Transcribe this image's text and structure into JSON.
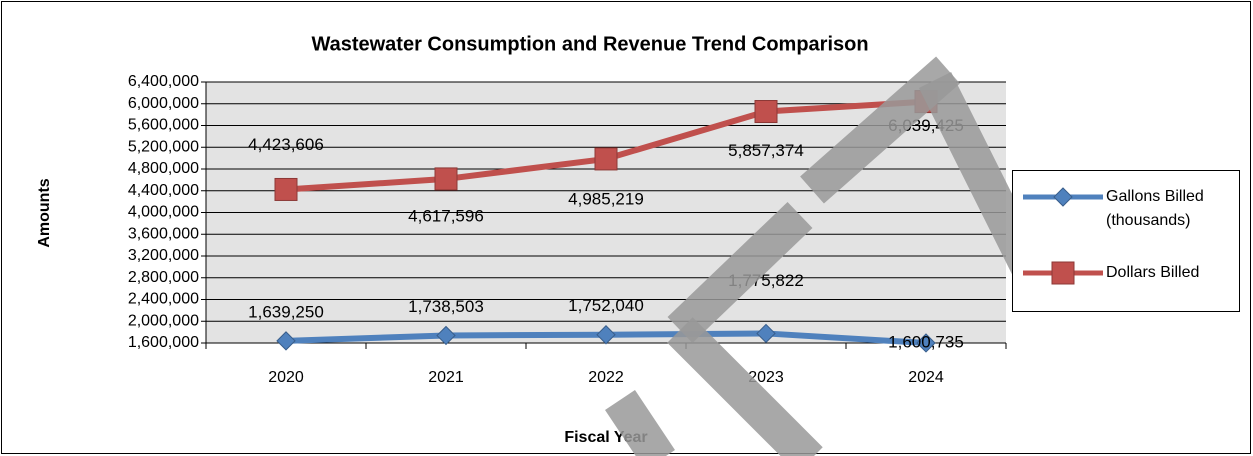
{
  "chart_data": {
    "type": "line",
    "title": "Wastewater Consumption and Revenue Trend Comparison",
    "y_label": "Amounts",
    "x_label": "Fiscal Year",
    "categories": [
      "2020",
      "2021",
      "2022",
      "2023",
      "2024"
    ],
    "series": [
      {
        "name": "Gallons Billed (thousands)",
        "color": "#4f81bd",
        "marker": "diamond",
        "values": [
          1639250,
          1738503,
          1752040,
          1775822,
          1600735
        ],
        "value_labels": [
          "1,639,250",
          "1,738,503",
          "1,752,040",
          "1,775,822",
          "1,600,735"
        ]
      },
      {
        "name": "Dollars Billed",
        "color": "#c0504d",
        "marker": "square",
        "values": [
          4423606,
          4617596,
          4985219,
          5857374,
          6039425
        ],
        "value_labels": [
          "4,423,606",
          "4,617,596",
          "4,985,219",
          "5,857,374",
          "6,039,425"
        ]
      }
    ],
    "ylim": [
      1600000,
      6400000
    ],
    "yticks": [
      {
        "value": 1600000,
        "label": "1,600,000"
      },
      {
        "value": 2000000,
        "label": "2,000,000"
      },
      {
        "value": 2400000,
        "label": "2,400,000"
      },
      {
        "value": 2800000,
        "label": "2,800,000"
      },
      {
        "value": 3200000,
        "label": "3,200,000"
      },
      {
        "value": 3600000,
        "label": "3,600,000"
      },
      {
        "value": 4000000,
        "label": "4,000,000"
      },
      {
        "value": 4400000,
        "label": "4,400,000"
      },
      {
        "value": 4800000,
        "label": "4,800,000"
      },
      {
        "value": 5200000,
        "label": "5,200,000"
      },
      {
        "value": 5600000,
        "label": "5,600,000"
      },
      {
        "value": 6000000,
        "label": "6,000,000"
      },
      {
        "value": 6400000,
        "label": "6,400,000"
      }
    ],
    "grid": true,
    "legend": "right"
  }
}
